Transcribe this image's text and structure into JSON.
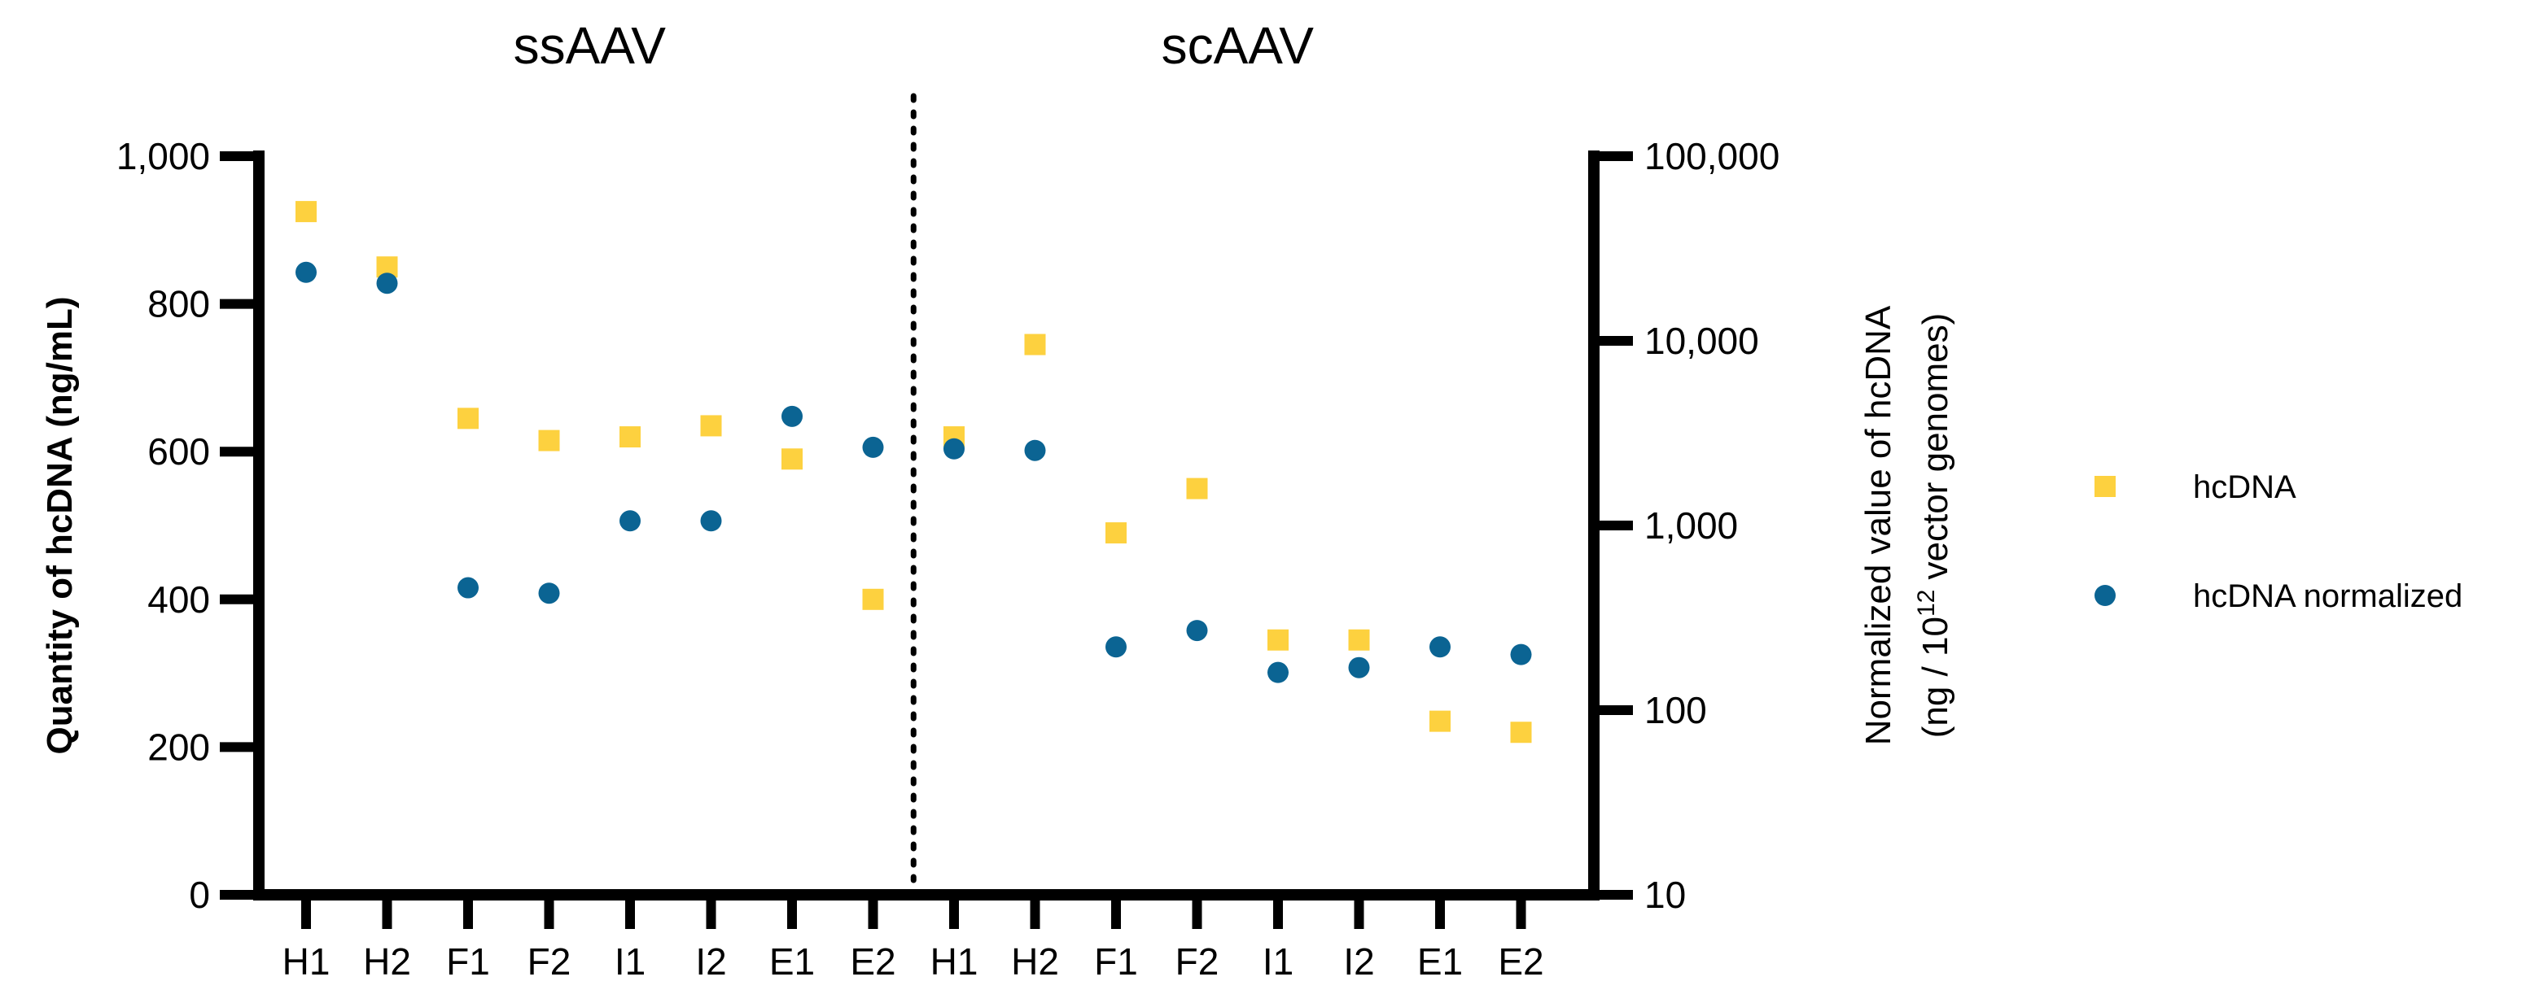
{
  "chart_data": {
    "type": "scatter",
    "groups": [
      {
        "label": "ssAAV",
        "start": 0,
        "end": 7
      },
      {
        "label": "scAAV",
        "start": 8,
        "end": 15
      }
    ],
    "categories": [
      "H1",
      "H2",
      "F1",
      "F2",
      "I1",
      "I2",
      "E1",
      "E2",
      "H1",
      "H2",
      "F1",
      "F2",
      "I1",
      "I2",
      "E1",
      "E2"
    ],
    "left_axis": {
      "label": "Quantity of hcDNA (ng/mL)",
      "scale": "linear",
      "range": [
        0,
        1000
      ],
      "ticks": [
        0,
        200,
        400,
        600,
        800,
        1000
      ],
      "tick_labels": [
        "0",
        "200",
        "400",
        "600",
        "800",
        "1,000"
      ]
    },
    "right_axis": {
      "label_line1": "Normalized value of hcDNA",
      "label_line2_before": "(ng / 10",
      "label_line2_sup": "12",
      "label_line2_after": " vector genomes)",
      "scale": "log",
      "range": [
        10,
        100000
      ],
      "ticks": [
        10,
        100,
        1000,
        10000,
        100000
      ],
      "tick_labels": [
        "10",
        "100",
        "1,000",
        "10,000",
        "100,000"
      ]
    },
    "series": [
      {
        "name": "hcDNA",
        "axis": "left",
        "marker": "square",
        "color": "#FDD13F",
        "values": [
          925,
          850,
          645,
          615,
          620,
          635,
          590,
          400,
          620,
          745,
          490,
          550,
          345,
          345,
          235,
          220
        ]
      },
      {
        "name": "hcDNA normalized",
        "axis": "right",
        "marker": "circle",
        "color": "#0B6493",
        "values": [
          23500,
          20500,
          460,
          430,
          1060,
          1060,
          3900,
          2650,
          2600,
          2550,
          220,
          270,
          160,
          170,
          220,
          200
        ]
      }
    ],
    "divider": {
      "style": "dotted",
      "between": [
        "E2",
        "H1"
      ]
    },
    "legend": {
      "position": "right"
    }
  }
}
